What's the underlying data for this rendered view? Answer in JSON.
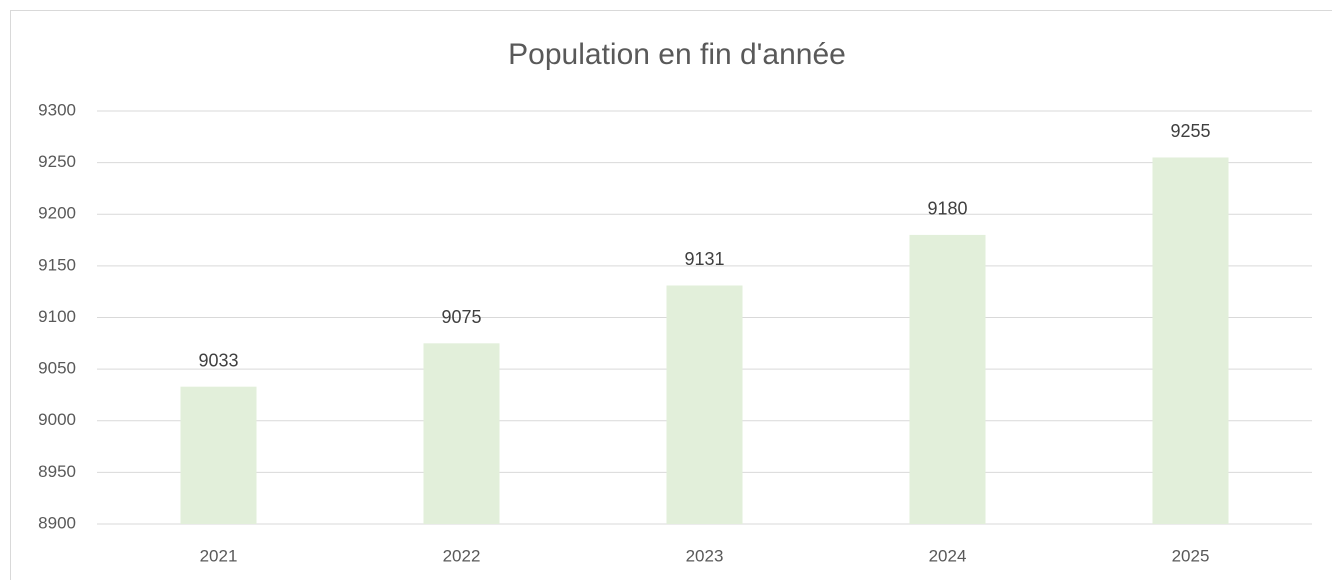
{
  "chart_data": {
    "type": "bar",
    "title": "Population en fin d'année",
    "categories": [
      "2021",
      "2022",
      "2023",
      "2024",
      "2025"
    ],
    "values": [
      9033,
      9075,
      9131,
      9180,
      9255
    ],
    "color": "#e2efda",
    "ylim": [
      8900,
      9300
    ],
    "yticks": [
      8900,
      8950,
      9000,
      9050,
      9100,
      9150,
      9200,
      9250,
      9300
    ],
    "grid": true
  }
}
